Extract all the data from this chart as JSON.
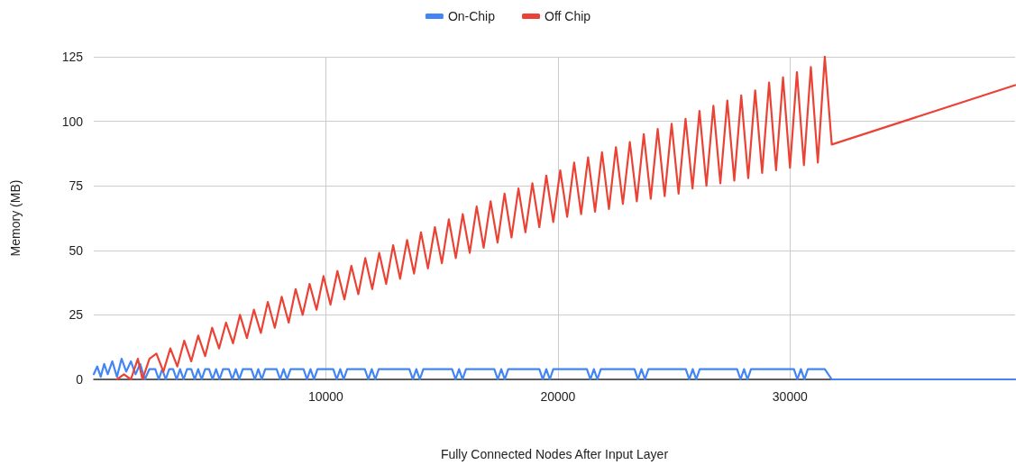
{
  "chart_data": {
    "type": "line",
    "xlabel": "Fully Connected Nodes After Input Layer",
    "ylabel": "Memory (MB)",
    "xlim": [
      0,
      39700
    ],
    "xticks": [
      10000,
      20000,
      30000
    ],
    "ylim": [
      0,
      125
    ],
    "yticks": [
      0,
      25,
      50,
      75,
      100,
      125
    ],
    "grid": true,
    "legend": "top",
    "marker": "none",
    "line_style": "solid",
    "series": [
      {
        "name": "On-Chip",
        "color": "#4285f4",
        "x": [
          0,
          150,
          300,
          450,
          600,
          800,
          1000,
          1200,
          1400,
          1600,
          1800,
          2000,
          2200,
          2400,
          2650,
          2800,
          2950,
          3100,
          3250,
          3420,
          3570,
          3720,
          3870,
          4020,
          4200,
          4350,
          4500,
          4650,
          4800,
          4970,
          5120,
          5270,
          5420,
          5570,
          5820,
          5970,
          6120,
          6270,
          6420,
          6790,
          6940,
          7090,
          7240,
          7390,
          7880,
          8030,
          8180,
          8330,
          8480,
          9040,
          9190,
          9340,
          9490,
          9640,
          10320,
          10470,
          10620,
          10770,
          10920,
          11680,
          11830,
          11980,
          12130,
          12280,
          13600,
          13750,
          13900,
          14050,
          14200,
          15440,
          15590,
          15740,
          15890,
          16040,
          17260,
          17410,
          17560,
          17710,
          17860,
          19200,
          19350,
          19500,
          19650,
          19800,
          21250,
          21400,
          21550,
          21700,
          21850,
          23300,
          23450,
          23600,
          23750,
          23900,
          25510,
          25660,
          25810,
          25960,
          26110,
          27720,
          27870,
          28020,
          28170,
          28320,
          30170,
          30320,
          30470,
          30620,
          30770,
          31500,
          31800,
          39700
        ],
        "values": [
          2,
          5,
          1,
          6,
          2,
          7,
          1,
          8,
          3,
          7,
          2,
          6,
          0,
          4,
          4,
          0,
          4,
          0,
          4,
          4,
          0,
          4,
          0,
          4,
          4,
          0,
          4,
          0,
          4,
          4,
          0,
          4,
          0,
          4,
          4,
          0,
          4,
          0,
          4,
          4,
          0,
          4,
          0,
          4,
          4,
          0,
          4,
          0,
          4,
          4,
          0,
          4,
          0,
          4,
          4,
          0,
          4,
          0,
          4,
          4,
          0,
          4,
          0,
          4,
          4,
          0,
          4,
          0,
          4,
          4,
          0,
          4,
          0,
          4,
          4,
          0,
          4,
          0,
          4,
          4,
          0,
          4,
          0,
          4,
          4,
          0,
          4,
          0,
          4,
          4,
          0,
          4,
          0,
          4,
          4,
          0,
          4,
          0,
          4,
          4,
          0,
          4,
          0,
          4,
          4,
          0,
          4,
          0,
          4,
          4,
          0,
          0
        ]
      },
      {
        "name": "Off Chip",
        "color": "#ea4335",
        "x": [
          1000,
          1300,
          1600,
          1900,
          2100,
          2400,
          2700,
          3000,
          3300,
          3600,
          3900,
          4200,
          4500,
          4800,
          5100,
          5400,
          5700,
          6000,
          6300,
          6600,
          6900,
          7200,
          7500,
          7800,
          8100,
          8400,
          8700,
          9000,
          9300,
          9600,
          9900,
          10200,
          10500,
          10800,
          11100,
          11400,
          11700,
          12000,
          12300,
          12600,
          12900,
          13200,
          13500,
          13800,
          14100,
          14400,
          14700,
          15000,
          15300,
          15600,
          15900,
          16200,
          16500,
          16800,
          17100,
          17400,
          17700,
          18000,
          18300,
          18600,
          18900,
          19200,
          19500,
          19800,
          20100,
          20400,
          20700,
          21000,
          21300,
          21600,
          21900,
          22200,
          22500,
          22800,
          23100,
          23400,
          23700,
          24000,
          24300,
          24600,
          24900,
          25200,
          25500,
          25800,
          26100,
          26400,
          26700,
          27000,
          27300,
          27600,
          27900,
          28200,
          28500,
          28800,
          29100,
          29400,
          29700,
          30000,
          30300,
          30600,
          30900,
          31200,
          31500,
          31800,
          39700
        ],
        "values": [
          0,
          2,
          0,
          8,
          0,
          8,
          10,
          3,
          12,
          5,
          15,
          7,
          17,
          9,
          20,
          12,
          22,
          14,
          25,
          16,
          27,
          18,
          30,
          20,
          32,
          22,
          35,
          25,
          37,
          27,
          40,
          29,
          42,
          31,
          44,
          33,
          47,
          35,
          49,
          37,
          52,
          39,
          54,
          41,
          57,
          43,
          59,
          45,
          62,
          47,
          64,
          49,
          67,
          51,
          69,
          53,
          72,
          55,
          74,
          57,
          76,
          59,
          79,
          61,
          81,
          63,
          84,
          64,
          86,
          65,
          88,
          66,
          90,
          68,
          92,
          69,
          95,
          70,
          97,
          71,
          99,
          72,
          101,
          74,
          104,
          75,
          106,
          76,
          108,
          77,
          110,
          78,
          112,
          80,
          115,
          81,
          117,
          82,
          119,
          83,
          121,
          84,
          125,
          91,
          114
        ]
      }
    ]
  }
}
